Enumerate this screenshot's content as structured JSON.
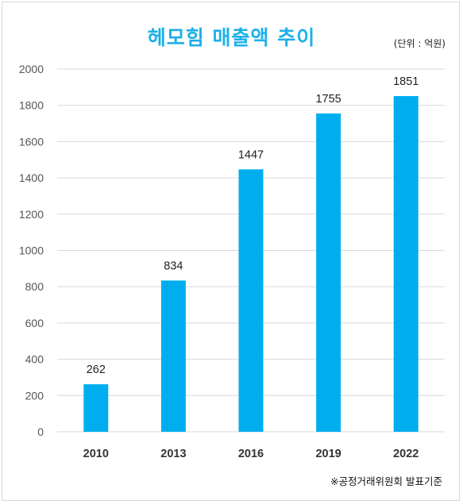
{
  "chart_data": {
    "type": "bar",
    "title": "헤모힘 매출액 추이",
    "unit_note": "(단위 : 억원)",
    "source_note": "※공정거래위원회 발표기준",
    "categories": [
      "2010",
      "2013",
      "2016",
      "2019",
      "2022"
    ],
    "values": [
      262,
      834,
      1447,
      1755,
      1851
    ],
    "ylim": [
      0,
      2000
    ],
    "yticks": [
      "0",
      "200",
      "400",
      "600",
      "800",
      "1000",
      "1200",
      "1400",
      "1600",
      "1800",
      "2000"
    ],
    "bar_color": "#00aeef",
    "grid": true,
    "legend": "none"
  }
}
